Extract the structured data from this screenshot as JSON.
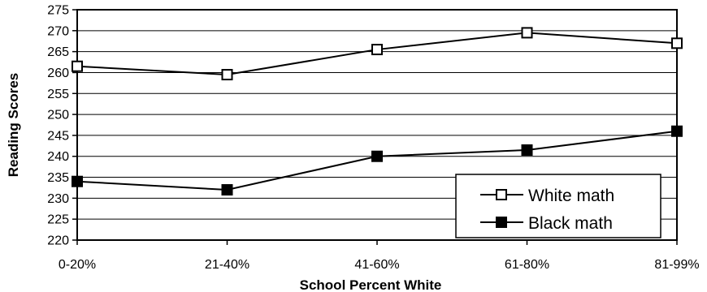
{
  "chart_data": {
    "type": "line",
    "categories": [
      "0-20%",
      "21-40%",
      "41-60%",
      "61-80%",
      "81-99%"
    ],
    "series": [
      {
        "name": "White math",
        "values": [
          261.5,
          259.5,
          265.5,
          269.5,
          267.0
        ],
        "marker": "open-square",
        "color": "#000000"
      },
      {
        "name": "Black math",
        "values": [
          234.0,
          232.0,
          240.0,
          241.5,
          246.0
        ],
        "marker": "filled-square",
        "color": "#000000"
      }
    ],
    "title": "",
    "xlabel": "School Percent White",
    "ylabel": "Reading Scores",
    "ylim": [
      220,
      275
    ],
    "yticks": [
      220,
      225,
      230,
      235,
      240,
      245,
      250,
      255,
      260,
      265,
      270,
      275
    ],
    "grid": true,
    "legend_position": "bottom-right"
  }
}
